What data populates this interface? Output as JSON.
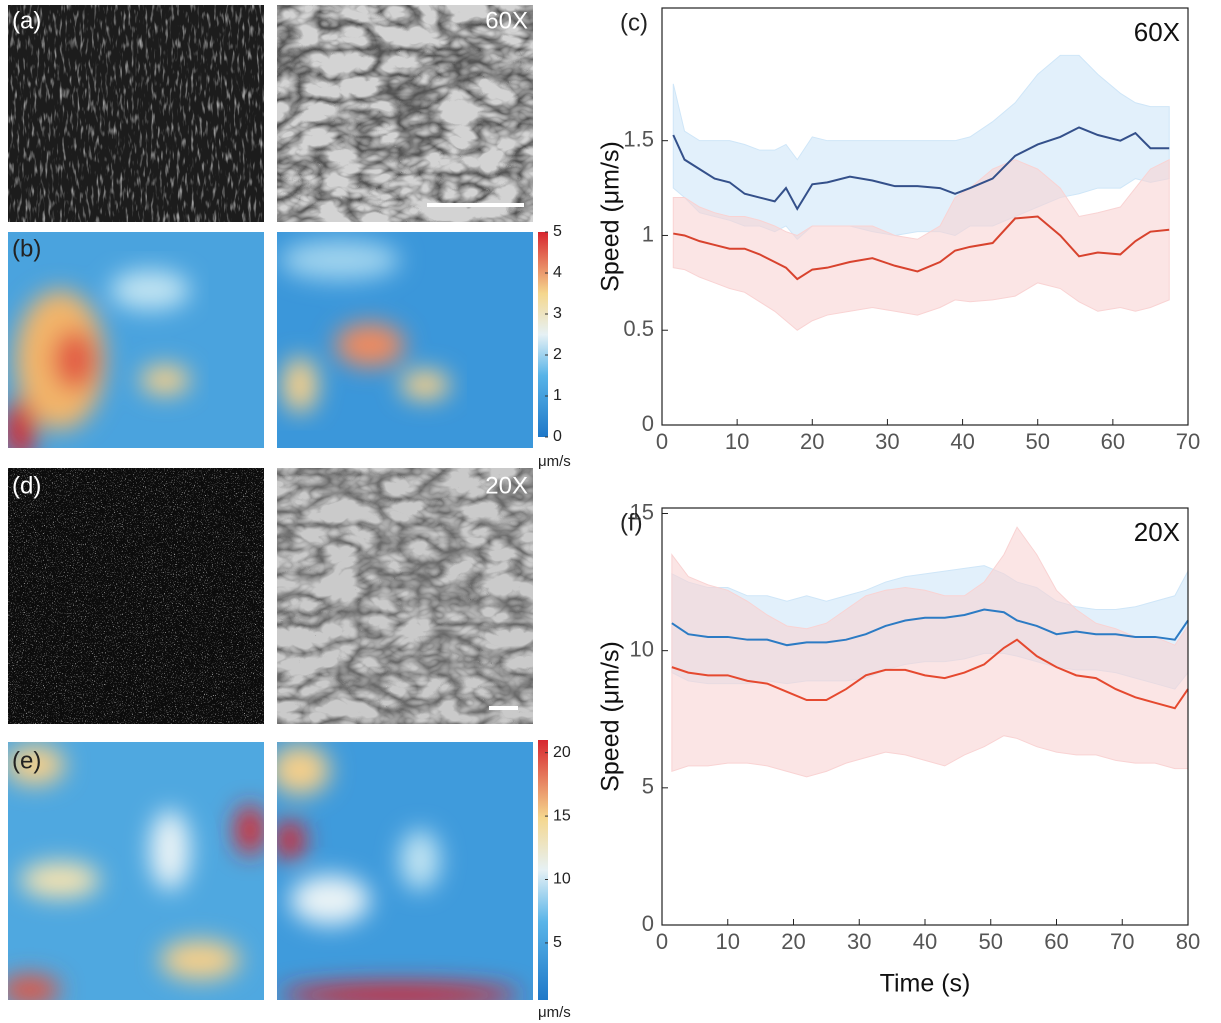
{
  "panels": {
    "a": "(a)",
    "a_mag": "60X",
    "b": "(b)",
    "b_unit": "μm/s",
    "d": "(d)",
    "d_mag": "20X",
    "e": "(e)",
    "e_unit": "μm/s"
  },
  "colorbars": [
    {
      "ylim": [
        0,
        5
      ],
      "yticks": [
        0,
        1,
        2,
        3,
        4,
        5
      ]
    },
    {
      "ylim": [
        0.5,
        21
      ],
      "yticks": [
        5,
        10,
        15,
        20
      ]
    }
  ],
  "chart_data": [
    {
      "type": "line",
      "panel_label": "(c)",
      "annotation": "60X",
      "y_label": "Speed (μm/s)",
      "xlim": [
        0,
        70
      ],
      "xticks": [
        0,
        10,
        20,
        30,
        40,
        50,
        60,
        70
      ],
      "ylim": [
        0,
        2.2
      ],
      "yticks": [
        0,
        0.5,
        1,
        1.5
      ],
      "x": [
        1.5,
        3,
        5,
        7,
        9,
        11,
        13,
        15,
        16.5,
        18,
        20,
        22,
        25,
        28,
        31,
        34,
        37,
        39,
        41,
        44,
        47,
        50,
        53,
        55.5,
        58,
        61,
        63,
        65,
        67.5
      ],
      "series": [
        {
          "color": "#34508a",
          "band_color": "#cfe6f8",
          "values": [
            1.53,
            1.4,
            1.35,
            1.3,
            1.28,
            1.22,
            1.2,
            1.18,
            1.25,
            1.14,
            1.27,
            1.28,
            1.31,
            1.29,
            1.26,
            1.26,
            1.25,
            1.22,
            1.25,
            1.3,
            1.42,
            1.48,
            1.52,
            1.57,
            1.53,
            1.5,
            1.54,
            1.46,
            1.46
          ],
          "upper": [
            1.8,
            1.55,
            1.5,
            1.5,
            1.5,
            1.48,
            1.45,
            1.45,
            1.48,
            1.4,
            1.52,
            1.5,
            1.5,
            1.5,
            1.5,
            1.5,
            1.5,
            1.5,
            1.52,
            1.6,
            1.7,
            1.85,
            1.95,
            1.95,
            1.85,
            1.75,
            1.7,
            1.68,
            1.68
          ],
          "lower": [
            1.25,
            1.2,
            1.12,
            1.1,
            1.08,
            1.05,
            1.05,
            1.02,
            1.05,
            0.98,
            1.05,
            1.05,
            1.05,
            1.02,
            1.0,
            1.02,
            1.02,
            1.0,
            1.05,
            1.05,
            1.1,
            1.15,
            1.2,
            1.22,
            1.25,
            1.25,
            1.3,
            1.28,
            1.3
          ]
        },
        {
          "color": "#d8432e",
          "band_color": "#f9d3d3",
          "values": [
            1.01,
            1.0,
            0.97,
            0.95,
            0.93,
            0.93,
            0.9,
            0.86,
            0.83,
            0.77,
            0.82,
            0.83,
            0.86,
            0.88,
            0.84,
            0.81,
            0.86,
            0.92,
            0.94,
            0.96,
            1.09,
            1.1,
            1.0,
            0.89,
            0.91,
            0.9,
            0.97,
            1.02,
            1.03
          ],
          "upper": [
            1.2,
            1.2,
            1.15,
            1.12,
            1.1,
            1.1,
            1.08,
            1.05,
            1.02,
            1.0,
            1.05,
            1.05,
            1.05,
            1.05,
            1.0,
            0.98,
            1.05,
            1.2,
            1.25,
            1.35,
            1.4,
            1.35,
            1.25,
            1.1,
            1.12,
            1.15,
            1.25,
            1.35,
            1.4
          ],
          "lower": [
            0.83,
            0.82,
            0.78,
            0.75,
            0.72,
            0.7,
            0.65,
            0.6,
            0.55,
            0.5,
            0.55,
            0.58,
            0.6,
            0.62,
            0.6,
            0.58,
            0.62,
            0.66,
            0.65,
            0.66,
            0.68,
            0.75,
            0.72,
            0.65,
            0.6,
            0.62,
            0.6,
            0.62,
            0.66
          ]
        }
      ]
    },
    {
      "type": "line",
      "panel_label": "(f)",
      "annotation": "20X",
      "y_label": "Speed (μm/s)",
      "x_label": "Time (s)",
      "xlim": [
        0,
        80
      ],
      "xticks": [
        0,
        10,
        20,
        30,
        40,
        50,
        60,
        70,
        80
      ],
      "ylim": [
        0,
        15.2
      ],
      "yticks": [
        0,
        5,
        10,
        15
      ],
      "x": [
        1.5,
        4,
        7,
        10,
        13,
        16,
        19,
        22,
        25,
        28,
        31,
        34,
        37,
        40,
        43,
        46,
        49,
        52,
        54,
        57,
        60,
        63,
        66,
        69,
        72,
        75,
        78,
        80
      ],
      "series": [
        {
          "color": "#2c7bc4",
          "band_color": "#cfe6f8",
          "values": [
            11.0,
            10.6,
            10.5,
            10.5,
            10.4,
            10.4,
            10.2,
            10.3,
            10.3,
            10.4,
            10.6,
            10.9,
            11.1,
            11.2,
            11.2,
            11.3,
            11.5,
            11.4,
            11.1,
            10.9,
            10.6,
            10.7,
            10.6,
            10.6,
            10.5,
            10.5,
            10.4,
            11.1
          ],
          "upper": [
            12.8,
            12.5,
            12.3,
            12.3,
            12.0,
            12.0,
            11.8,
            12.0,
            11.8,
            12.0,
            12.2,
            12.5,
            12.7,
            12.8,
            12.9,
            13.0,
            13.1,
            12.8,
            12.5,
            12.3,
            11.8,
            11.6,
            11.5,
            11.5,
            11.6,
            11.8,
            12.0,
            12.9
          ],
          "lower": [
            9.2,
            8.9,
            8.8,
            8.8,
            8.8,
            8.9,
            8.8,
            8.9,
            8.9,
            8.9,
            9.0,
            9.3,
            9.5,
            9.6,
            9.6,
            9.7,
            9.9,
            9.9,
            9.8,
            9.6,
            9.4,
            9.3,
            9.3,
            9.2,
            9.0,
            8.8,
            8.6,
            9.2
          ]
        },
        {
          "color": "#e5492f",
          "band_color": "#f9d3d3",
          "values": [
            9.4,
            9.2,
            9.1,
            9.1,
            8.9,
            8.8,
            8.5,
            8.2,
            8.2,
            8.6,
            9.1,
            9.3,
            9.3,
            9.1,
            9.0,
            9.2,
            9.5,
            10.1,
            10.4,
            9.8,
            9.4,
            9.1,
            9.0,
            8.6,
            8.3,
            8.1,
            7.9,
            8.6
          ],
          "upper": [
            13.5,
            12.7,
            12.4,
            12.2,
            11.8,
            11.3,
            10.9,
            10.8,
            11.0,
            11.5,
            12.0,
            12.2,
            12.3,
            12.2,
            12.0,
            12.0,
            12.5,
            13.5,
            14.5,
            13.5,
            12.2,
            11.5,
            11.0,
            10.8,
            10.5,
            10.5,
            10.2,
            10.9
          ],
          "lower": [
            5.6,
            5.8,
            5.8,
            5.9,
            5.9,
            5.8,
            5.6,
            5.4,
            5.6,
            5.9,
            6.1,
            6.3,
            6.2,
            6.0,
            5.8,
            6.2,
            6.5,
            6.9,
            6.8,
            6.5,
            6.3,
            6.2,
            6.2,
            6.0,
            5.9,
            5.9,
            5.7,
            5.7
          ]
        }
      ]
    }
  ]
}
